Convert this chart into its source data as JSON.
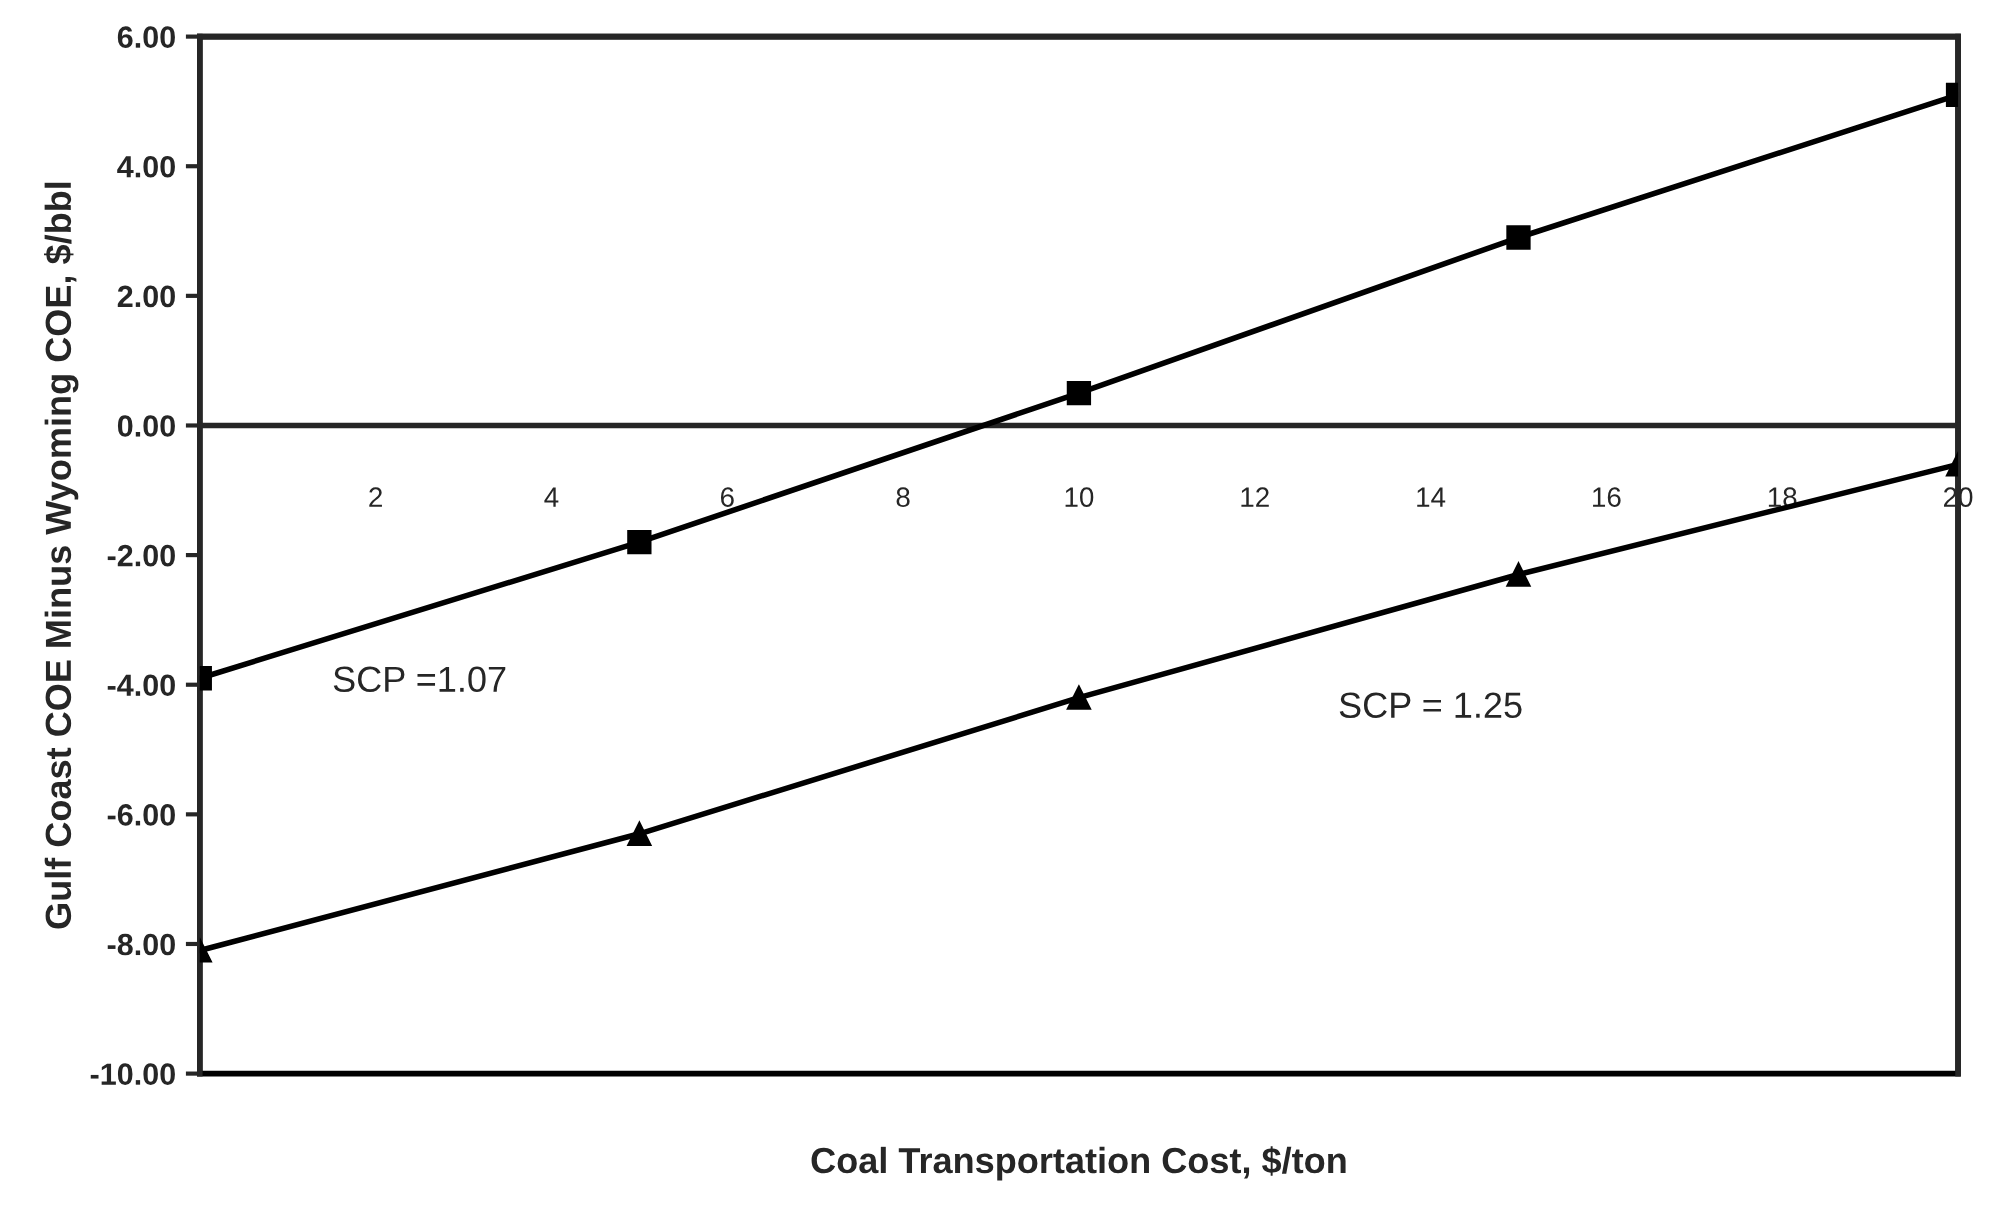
{
  "chart_data": {
    "type": "line",
    "xlabel": "Coal Transportation Cost, $/ton",
    "ylabel": "Gulf Coast COE Minus Wyoming COE, $/bbl",
    "x": [
      0,
      5,
      10,
      15,
      20
    ],
    "series": [
      {
        "name": "SCP =1.07",
        "color": "#000000",
        "marker": "square",
        "values": [
          -3.9,
          -1.8,
          0.5,
          2.9,
          5.1
        ]
      },
      {
        "name": "SCP = 1.25",
        "color": "#000000",
        "marker": "triangle",
        "values": [
          -8.1,
          -6.3,
          -4.2,
          -2.3,
          -0.6
        ]
      }
    ],
    "xlim": [
      0,
      20
    ],
    "xticks": [
      {
        "value": 0,
        "label": null
      },
      2,
      4,
      6,
      8,
      10,
      12,
      14,
      16,
      18,
      20
    ],
    "ylim": [
      -10,
      6
    ],
    "yticks": [
      {
        "value": -10,
        "label": "-10.00"
      },
      {
        "value": -8,
        "label": "-8.00"
      },
      {
        "value": -6,
        "label": "-6.00"
      },
      {
        "value": -4,
        "label": "-4.00"
      },
      {
        "value": -2,
        "label": "-2.00"
      },
      {
        "value": 0,
        "label": "0.00"
      },
      {
        "value": 2,
        "label": "2.00"
      },
      {
        "value": 4,
        "label": "4.00"
      },
      {
        "value": 6,
        "label": "6.00"
      }
    ],
    "grid": false,
    "legend": false,
    "line_style": "solid"
  }
}
